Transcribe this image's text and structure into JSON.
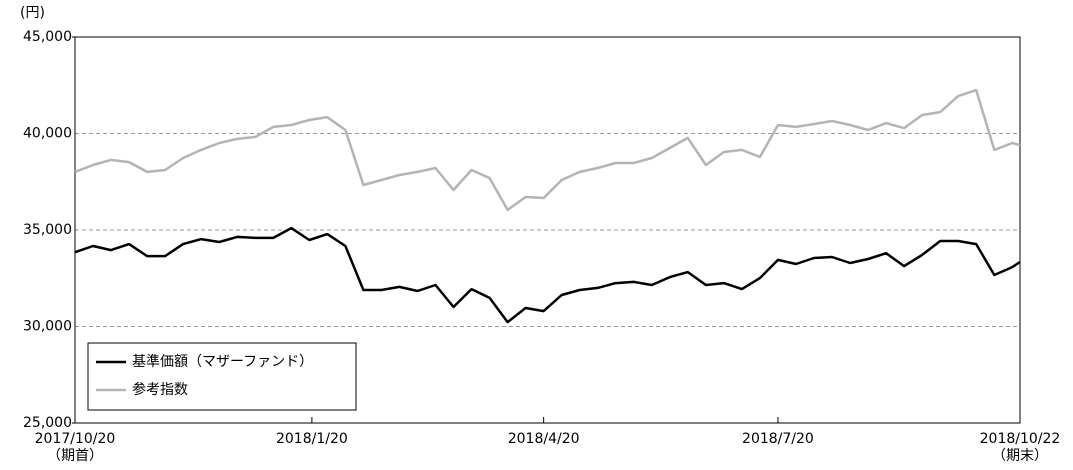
{
  "chart_data": {
    "type": "line",
    "unit_label": "(円)",
    "x": [
      "2017/10/20",
      "2017/10/27",
      "2017/11/3",
      "2017/11/10",
      "2017/11/17",
      "2017/11/24",
      "2017/12/1",
      "2017/12/8",
      "2017/12/15",
      "2017/12/22",
      "2017/12/29",
      "2018/1/5",
      "2018/1/12",
      "2018/1/19",
      "2018/1/26",
      "2018/2/2",
      "2018/2/9",
      "2018/2/16",
      "2018/2/23",
      "2018/3/2",
      "2018/3/9",
      "2018/3/16",
      "2018/3/23",
      "2018/3/30",
      "2018/4/6",
      "2018/4/13",
      "2018/4/20",
      "2018/4/27",
      "2018/5/4",
      "2018/5/11",
      "2018/5/18",
      "2018/5/25",
      "2018/6/1",
      "2018/6/8",
      "2018/6/15",
      "2018/6/22",
      "2018/6/29",
      "2018/7/6",
      "2018/7/13",
      "2018/7/20",
      "2018/7/27",
      "2018/8/3",
      "2018/8/10",
      "2018/8/17",
      "2018/8/24",
      "2018/8/31",
      "2018/9/7",
      "2018/9/14",
      "2018/9/21",
      "2018/9/28",
      "2018/10/5",
      "2018/10/12",
      "2018/10/19",
      "2018/10/22"
    ],
    "series": [
      {
        "name": "基準価額（マザーファンド）",
        "color": "#000000",
        "values": [
          33850,
          34170,
          33960,
          34270,
          33650,
          33650,
          34270,
          34530,
          34380,
          34640,
          34590,
          34590,
          35100,
          34480,
          34790,
          34170,
          31890,
          31890,
          32050,
          31840,
          32150,
          31010,
          31940,
          31480,
          30230,
          30960,
          30800,
          31630,
          31890,
          32000,
          32250,
          32310,
          32150,
          32560,
          32820,
          32150,
          32250,
          31940,
          32510,
          33450,
          33240,
          33550,
          33600,
          33290,
          33500,
          33800,
          33130,
          33710,
          34430,
          34430,
          34270,
          32670,
          33080,
          33340
        ]
      },
      {
        "name": "参考指数",
        "color": "#b4b4b4",
        "values": [
          38010,
          38370,
          38630,
          38520,
          38010,
          38110,
          38730,
          39150,
          39510,
          39720,
          39820,
          40340,
          40440,
          40700,
          40850,
          40180,
          37330,
          37590,
          37850,
          38010,
          38210,
          37070,
          38110,
          37690,
          36040,
          36710,
          36660,
          37590,
          38010,
          38210,
          38470,
          38470,
          38730,
          39250,
          39770,
          38370,
          39040,
          39150,
          38780,
          40440,
          40340,
          40490,
          40650,
          40440,
          40180,
          40540,
          40280,
          40960,
          41110,
          41940,
          42250,
          39150,
          39510,
          39400
        ]
      }
    ],
    "xlim": [
      "2017/10/20",
      "2018/10/22"
    ],
    "xticks": [
      "2017/10/20",
      "2018/1/20",
      "2018/4/20",
      "2018/7/20",
      "2018/10/22"
    ],
    "xtick_notes": [
      "（期首）",
      null,
      null,
      null,
      "（期末）"
    ],
    "ylim": [
      25000,
      45000
    ],
    "yticks": [
      {
        "value": 25000,
        "label": "25,000"
      },
      {
        "value": 30000,
        "label": "30,000"
      },
      {
        "value": 35000,
        "label": "35,000"
      },
      {
        "value": 40000,
        "label": "40,000"
      },
      {
        "value": 45000,
        "label": "45,000"
      }
    ],
    "grid": true
  }
}
